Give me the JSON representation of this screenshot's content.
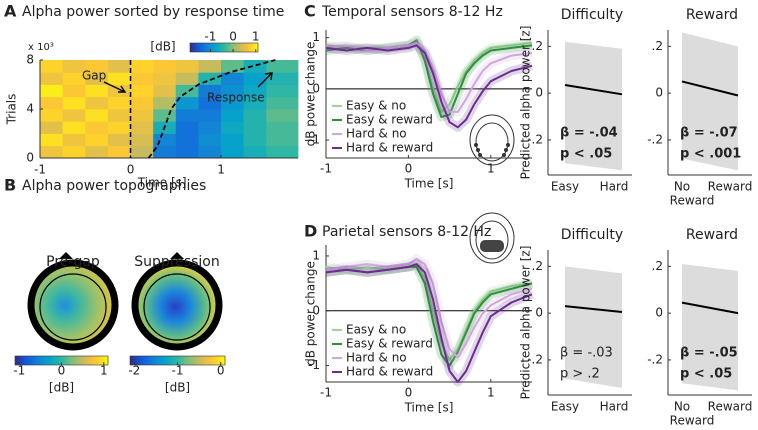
{
  "chart_data": [
    {
      "type": "heatmap",
      "panel": "A",
      "title": "Alpha power sorted by response time",
      "xlabel": "Time [s]",
      "ylabel": "Trials",
      "y_exponent_label": "x 10³",
      "xlim": [
        -1,
        1.85
      ],
      "ylim": [
        0,
        8
      ],
      "xticks": [
        -1,
        0,
        1
      ],
      "yticks": [
        0,
        4,
        8
      ],
      "x_edges": [
        -1,
        -0.75,
        -0.5,
        -0.25,
        0,
        0.25,
        0.5,
        0.75,
        1,
        1.25,
        1.5,
        1.85
      ],
      "y_edges": [
        0,
        1,
        2,
        3,
        4,
        5,
        6,
        7,
        8
      ],
      "z": [
        [
          0.6,
          0.8,
          0.5,
          0.7,
          0.3,
          -1.2,
          -1.3,
          -1.1,
          -0.8,
          -0.6,
          -0.4
        ],
        [
          0.9,
          0.6,
          0.8,
          0.5,
          0.4,
          -1.1,
          -1.3,
          -1.0,
          -0.8,
          -0.5,
          -0.3
        ],
        [
          0.5,
          0.9,
          0.7,
          0.8,
          0.5,
          -0.6,
          -1.3,
          -1.1,
          -0.7,
          -0.5,
          -0.3
        ],
        [
          0.8,
          0.6,
          0.9,
          0.6,
          0.6,
          -0.2,
          -1.2,
          -1.2,
          -0.8,
          -0.5,
          -0.2
        ],
        [
          0.7,
          0.9,
          0.6,
          0.8,
          0.7,
          0.2,
          -0.9,
          -1.3,
          -0.9,
          -0.6,
          -0.3
        ],
        [
          1.0,
          0.7,
          0.9,
          0.6,
          0.8,
          0.5,
          -0.3,
          -1.2,
          -1.0,
          -0.7,
          -0.4
        ],
        [
          0.6,
          0.8,
          0.5,
          0.9,
          0.7,
          0.6,
          0.3,
          -0.5,
          -1.1,
          -0.8,
          -0.5
        ],
        [
          0.8,
          0.6,
          0.7,
          0.5,
          0.8,
          0.7,
          0.6,
          0.3,
          -0.2,
          -0.6,
          -0.3
        ]
      ],
      "colormap": [
        "#352a87",
        "#0f5cdd",
        "#1481d6",
        "#06a4ca",
        "#2eb7a4",
        "#87bf77",
        "#d1bb59",
        "#fec832",
        "#f9fb0e"
      ],
      "colorbar": {
        "label": "[dB]",
        "lim": [
          -1.9,
          1.1
        ],
        "ticks": [
          -1,
          0,
          1
        ]
      },
      "gap_time": 0,
      "gap_label": "Gap",
      "response_label": "Response",
      "response_curve": {
        "x": [
          0.2,
          0.3,
          0.35,
          0.4,
          0.45,
          0.55,
          0.75,
          1.1,
          1.6
        ],
        "y": [
          0,
          1,
          2,
          3,
          4,
          5,
          6,
          7,
          8
        ]
      }
    },
    {
      "type": "topomap",
      "panel": "B",
      "title": "Alpha power topographies",
      "maps": [
        {
          "title": "Pre-gap",
          "colorbar": {
            "label": "[dB]",
            "lim": [
              -1.1,
              1.1
            ],
            "ticks": [
              -1,
              0,
              1
            ]
          }
        },
        {
          "title": "Suppression",
          "colorbar": {
            "label": "[dB]",
            "lim": [
              -2.1,
              0.1
            ],
            "ticks": [
              -2,
              -1,
              0
            ]
          }
        }
      ]
    },
    {
      "type": "line",
      "panel": "C",
      "title": "Temporal sensors 8-12 Hz",
      "xlabel": "Time [s]",
      "ylabel": "dB power change",
      "xlim": [
        -1,
        1.5
      ],
      "ylim": [
        -1.35,
        1.15
      ],
      "xticks": [
        -1,
        0,
        1
      ],
      "yticks": [
        -1,
        0,
        1
      ],
      "hline": 0,
      "legend": "lower left",
      "x": [
        -1,
        -0.75,
        -0.5,
        -0.25,
        0,
        0.1,
        0.2,
        0.3,
        0.4,
        0.5,
        0.6,
        0.7,
        0.8,
        0.9,
        1.0,
        1.25,
        1.5
      ],
      "series": [
        {
          "name": "Easy & no",
          "color": "#9fd49a",
          "values": [
            0.85,
            0.8,
            0.8,
            0.8,
            0.85,
            0.9,
            0.6,
            0.0,
            -0.45,
            -0.3,
            0.05,
            0.35,
            0.55,
            0.7,
            0.8,
            0.85,
            0.9
          ]
        },
        {
          "name": "Easy & reward",
          "color": "#2f8f3e",
          "values": [
            0.75,
            0.8,
            0.75,
            0.8,
            0.85,
            0.95,
            0.55,
            -0.1,
            -0.55,
            -0.5,
            -0.1,
            0.3,
            0.5,
            0.65,
            0.75,
            0.8,
            0.85
          ]
        },
        {
          "name": "Hard & no",
          "color": "#cfa8dc",
          "values": [
            0.8,
            0.85,
            0.75,
            0.8,
            0.85,
            0.9,
            0.75,
            0.4,
            -0.1,
            -0.45,
            -0.45,
            -0.2,
            0.1,
            0.35,
            0.5,
            0.65,
            0.7
          ]
        },
        {
          "name": "Hard & reward",
          "color": "#6b2d8f",
          "values": [
            0.8,
            0.75,
            0.8,
            0.75,
            0.8,
            0.85,
            0.7,
            0.3,
            -0.25,
            -0.65,
            -0.75,
            -0.6,
            -0.3,
            -0.05,
            0.15,
            0.35,
            0.45
          ]
        }
      ]
    },
    {
      "type": "line",
      "panel": "D",
      "title": "Parietal sensors 8-12 Hz",
      "xlabel": "Time [s]",
      "ylabel": "dB power change",
      "xlim": [
        -1,
        1.5
      ],
      "ylim": [
        -1.3,
        1.2
      ],
      "xticks": [
        -1,
        0,
        1
      ],
      "yticks": [
        -1,
        0,
        1
      ],
      "hline": 0,
      "legend": "lower left",
      "x": [
        -1,
        -0.75,
        -0.5,
        -0.25,
        0,
        0.1,
        0.2,
        0.3,
        0.4,
        0.5,
        0.6,
        0.7,
        0.8,
        0.9,
        1.0,
        1.25,
        1.5
      ],
      "series": [
        {
          "name": "Easy & no",
          "color": "#9fd49a",
          "values": [
            0.8,
            0.75,
            0.8,
            0.75,
            0.8,
            0.85,
            0.6,
            0.0,
            -0.6,
            -0.9,
            -0.7,
            -0.35,
            0.0,
            0.2,
            0.35,
            0.45,
            0.5
          ]
        },
        {
          "name": "Easy & reward",
          "color": "#2f8f3e",
          "values": [
            0.7,
            0.75,
            0.7,
            0.75,
            0.8,
            0.8,
            0.5,
            -0.2,
            -0.8,
            -1.0,
            -0.75,
            -0.4,
            -0.05,
            0.15,
            0.3,
            0.4,
            0.5
          ]
        },
        {
          "name": "Hard & no",
          "color": "#cfa8dc",
          "values": [
            0.75,
            0.8,
            0.85,
            0.8,
            0.85,
            0.95,
            0.85,
            0.5,
            -0.2,
            -0.7,
            -0.85,
            -0.6,
            -0.3,
            -0.05,
            0.1,
            0.3,
            0.4
          ]
        },
        {
          "name": "Hard & reward",
          "color": "#6b2d8f",
          "values": [
            0.7,
            0.75,
            0.7,
            0.75,
            0.8,
            0.85,
            0.7,
            0.2,
            -0.5,
            -1.1,
            -1.3,
            -1.1,
            -0.75,
            -0.4,
            -0.1,
            0.15,
            0.3
          ]
        }
      ]
    },
    {
      "type": "effect",
      "title": "Difficulty",
      "ylabel": "Predicted alpha power [z]",
      "categories": [
        "Easy",
        "Hard"
      ],
      "values": [
        0.035,
        -0.005
      ],
      "band_upper": [
        0.22,
        0.19
      ],
      "band_lower": [
        -0.3,
        -0.33
      ],
      "color": "#000000",
      "band_color": "#dcdcdc",
      "ylim": [
        -0.35,
        0.27
      ],
      "yticks": [
        {
          "value": -0.2,
          "label": "-.2"
        },
        0,
        {
          "value": 0.2,
          "label": ".2"
        }
      ],
      "annotations": [
        "β = -.04",
        "p < .05"
      ],
      "bold": true
    },
    {
      "type": "effect",
      "title": "Reward",
      "xlabel": "Reward",
      "categories": [
        "No",
        "Reward"
      ],
      "values": [
        0.05,
        -0.01
      ],
      "band_upper": [
        0.26,
        0.2
      ],
      "band_lower": [
        -0.28,
        -0.33
      ],
      "color": "#000000",
      "band_color": "#dcdcdc",
      "ylim": [
        -0.35,
        0.27
      ],
      "yticks": [
        {
          "value": -0.2,
          "label": "-.2"
        },
        0,
        {
          "value": 0.2,
          "label": ".2"
        }
      ],
      "annotations": [
        "β = -.07",
        "p < .001"
      ],
      "bold": true
    },
    {
      "type": "effect",
      "title": "Difficulty",
      "ylabel": "Predicted alpha power [z]",
      "categories": [
        "Easy",
        "Hard"
      ],
      "values": [
        0.03,
        0.005
      ],
      "band_upper": [
        0.2,
        0.17
      ],
      "band_lower": [
        -0.28,
        -0.32
      ],
      "color": "#000000",
      "band_color": "#dcdcdc",
      "ylim": [
        -0.35,
        0.27
      ],
      "yticks": [
        {
          "value": -0.2,
          "label": "-.2"
        },
        0,
        {
          "value": 0.2,
          "label": ".2"
        }
      ],
      "annotations": [
        "β = -.03",
        "p > .2"
      ],
      "bold": false
    },
    {
      "type": "effect",
      "title": "Reward",
      "xlabel": "Reward",
      "categories": [
        "No",
        "Reward"
      ],
      "values": [
        0.045,
        0.0
      ],
      "band_upper": [
        0.21,
        0.18
      ],
      "band_lower": [
        -0.3,
        -0.33
      ],
      "color": "#000000",
      "band_color": "#dcdcdc",
      "ylim": [
        -0.35,
        0.27
      ],
      "yticks": [
        {
          "value": -0.2,
          "label": "-.2"
        },
        0,
        {
          "value": 0.2,
          "label": ".2"
        }
      ],
      "annotations": [
        "β = -.05",
        "p < .05"
      ],
      "bold": true
    }
  ]
}
